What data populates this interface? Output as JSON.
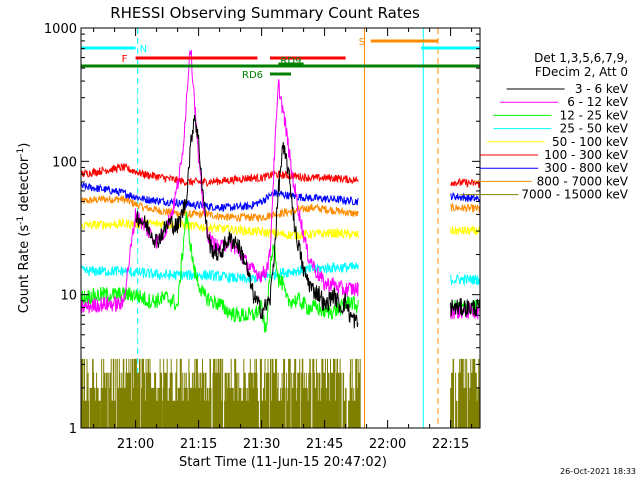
{
  "chart_data": {
    "type": "line",
    "title": "RHESSI Observing Summary Count Rates",
    "xlabel": "Start Time (11-Jun-15 20:47:02)",
    "ylabel_main": "Count Rate (s",
    "ylabel_sup1": "-1",
    "ylabel_mid": " detector",
    "ylabel_sup2": "-1",
    "ylabel_end": ")",
    "yscale": "log",
    "ylim": [
      1,
      1000
    ],
    "xlim_minutes": [
      0,
      95
    ],
    "x_tick_labels": [
      "21:00",
      "21:15",
      "21:30",
      "21:45",
      "22:00",
      "22:15"
    ],
    "x_tick_minutes": [
      13,
      28,
      43,
      58,
      73,
      88
    ],
    "y_tick_labels": [
      "1",
      "10",
      "100",
      "1000"
    ],
    "y_tick_values": [
      1,
      10,
      100,
      1000
    ],
    "info_lines": [
      "Det 1,3,5,6,7,9,",
      "FDecim 2, Att 0"
    ],
    "timestamp": "26-Oct-2021 18:33",
    "data_gaps_minutes": [
      [
        67,
        88
      ]
    ],
    "series": [
      {
        "name": "3 - 6 keV",
        "color": "#000000",
        "x": [
          13,
          16,
          18,
          21,
          23,
          25,
          26,
          27,
          28,
          29,
          30,
          31,
          33,
          35,
          37,
          39,
          41,
          43,
          45,
          46,
          47,
          48,
          49,
          50,
          51,
          52,
          53,
          55,
          57,
          58,
          59,
          60,
          61,
          62,
          63,
          64,
          65,
          66
        ],
        "values": [
          40,
          32,
          25,
          35,
          32,
          50,
          120,
          230,
          140,
          60,
          30,
          22,
          20,
          26,
          25,
          18,
          10,
          7.5,
          9,
          20,
          60,
          125,
          100,
          60,
          30,
          22,
          15,
          11,
          10,
          8,
          9,
          10,
          9,
          8,
          9,
          7,
          6.5,
          6
        ]
      },
      {
        "name": "6 - 12 keV",
        "color": "#ff00ff",
        "x": [
          0,
          5,
          10,
          13,
          16,
          18,
          20,
          22,
          24,
          25,
          26,
          27,
          28,
          29,
          30,
          31,
          33,
          35,
          37,
          39,
          41,
          43,
          44,
          45,
          46,
          47,
          48,
          49,
          50,
          52,
          54,
          56,
          58,
          60,
          62,
          64,
          66
        ],
        "values": [
          8,
          8.5,
          8.5,
          40,
          30,
          25,
          30,
          45,
          100,
          250,
          780,
          300,
          100,
          50,
          30,
          25,
          22,
          25,
          22,
          18,
          15,
          14,
          15,
          20,
          100,
          380,
          250,
          160,
          90,
          40,
          20,
          15,
          12,
          12,
          11,
          11,
          11
        ]
      },
      {
        "name": "12 - 25 keV",
        "color": "#00ff00",
        "x": [
          0,
          5,
          10,
          13,
          16,
          18,
          20,
          22,
          23,
          25,
          27,
          29,
          31,
          33,
          35,
          37,
          39,
          41,
          43,
          44,
          45,
          46,
          47,
          48,
          49,
          50,
          52,
          54,
          56,
          58,
          60,
          62,
          64,
          66
        ],
        "values": [
          9.5,
          10,
          10,
          10,
          9,
          9,
          9.5,
          9,
          8,
          40,
          15,
          10,
          9,
          8.5,
          7.5,
          7,
          7,
          7,
          8,
          5,
          15,
          25,
          13,
          12,
          9,
          9,
          9,
          8,
          8,
          7.5,
          7.5,
          8,
          9,
          8
        ]
      },
      {
        "name": "25 - 50 keV",
        "color": "#00ffff",
        "x": [
          0,
          10,
          20,
          30,
          40,
          50,
          60,
          66
        ],
        "values": [
          15,
          15,
          14,
          14,
          13,
          15,
          16,
          16
        ]
      },
      {
        "name": "50 - 100 keV",
        "color": "#ffff00",
        "x": [
          0,
          10,
          20,
          30,
          40,
          50,
          60,
          66
        ],
        "values": [
          33,
          34,
          34,
          32,
          30,
          28,
          29,
          28
        ]
      },
      {
        "name": "100 - 300 keV",
        "color": "#ff0000",
        "x": [
          0,
          5,
          10,
          15,
          20,
          25,
          30,
          35,
          40,
          43,
          46,
          50,
          55,
          60,
          66
        ],
        "values": [
          80,
          85,
          90,
          80,
          75,
          70,
          70,
          72,
          75,
          75,
          80,
          78,
          75,
          75,
          72
        ]
      },
      {
        "name": "300 - 800 keV",
        "color": "#0000ff",
        "x": [
          0,
          5,
          10,
          15,
          20,
          25,
          30,
          35,
          40,
          43,
          46,
          50,
          55,
          60,
          66
        ],
        "values": [
          65,
          62,
          58,
          52,
          50,
          48,
          46,
          45,
          46,
          50,
          58,
          55,
          53,
          52,
          50
        ]
      },
      {
        "name": "800 - 7000 keV",
        "color": "#ff8c00",
        "x": [
          0,
          5,
          10,
          15,
          20,
          25,
          30,
          35,
          40,
          43,
          46,
          50,
          55,
          60,
          66
        ],
        "values": [
          50,
          52,
          52,
          45,
          42,
          40,
          40,
          38,
          38,
          38,
          40,
          42,
          45,
          43,
          40
        ]
      },
      {
        "name": "7000 - 15000 keV",
        "color": "#808000",
        "x": [
          0,
          66
        ],
        "values": [
          2,
          2
        ]
      }
    ],
    "post_gap_series": {
      "x": [
        88,
        95
      ],
      "3 - 6 keV": [
        8,
        8
      ],
      "6 - 12 keV": [
        7.5,
        7.5
      ],
      "12 - 25 keV": [
        8,
        8
      ],
      "25 - 50 keV": [
        13,
        13
      ],
      "50 - 100 keV": [
        30,
        30
      ],
      "100 - 300 keV": [
        70,
        68
      ],
      "300 - 800 keV": [
        55,
        52
      ],
      "800 - 7000 keV": [
        45,
        44
      ],
      "7000 - 15000 keV": [
        1.8,
        1.8
      ]
    },
    "flag_bars": [
      {
        "label": "N",
        "color": "#00ffff",
        "ranges": [
          [
            0,
            13
          ],
          [
            81,
            95
          ]
        ],
        "level": 1
      },
      {
        "label": "S",
        "color": "#ff8c00",
        "ranges": [
          [
            69,
            85
          ]
        ],
        "level": 0
      },
      {
        "label": "F",
        "color": "#ff0000",
        "ranges": [
          [
            13,
            42
          ],
          [
            45,
            63
          ]
        ],
        "level": 2
      },
      {
        "label": "",
        "color": "#008000",
        "ranges": [
          [
            0,
            95
          ]
        ],
        "level": 3
      },
      {
        "label": "RD9",
        "color": "#008000",
        "ranges": [
          [
            47,
            53
          ]
        ],
        "level": 4
      },
      {
        "label": "RD6",
        "color": "#008000",
        "ranges": [
          [
            45,
            50
          ]
        ],
        "level": 5
      }
    ],
    "vertical_lines": [
      {
        "minute": 0,
        "color": "#00ffff",
        "dashed": false
      },
      {
        "minute": 13.5,
        "color": "#00ffff",
        "dashed": true
      },
      {
        "minute": 67.5,
        "color": "#ff8c00",
        "dashed": false
      },
      {
        "minute": 81.5,
        "color": "#00ffff",
        "dashed": false
      },
      {
        "minute": 85,
        "color": "#ff8c00",
        "dashed": true
      },
      {
        "minute": 95,
        "color": "#00ffff",
        "dashed": true
      }
    ]
  }
}
